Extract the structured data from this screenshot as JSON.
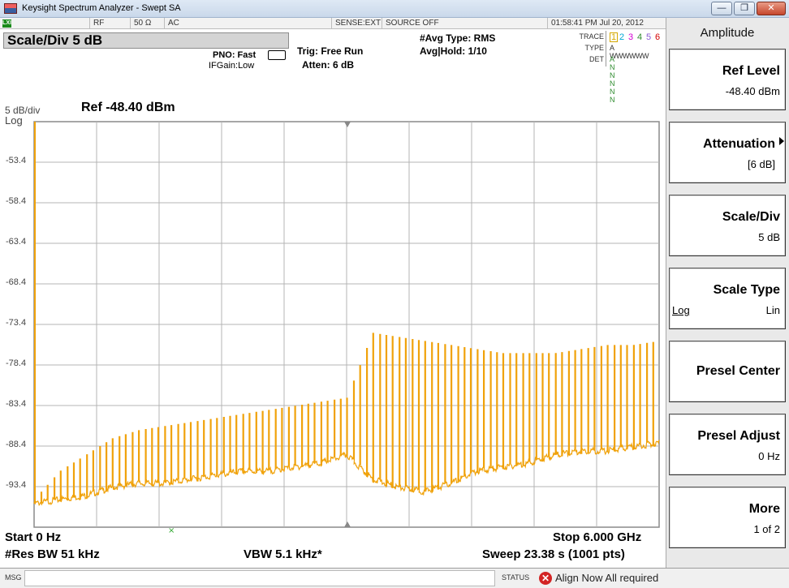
{
  "window": {
    "title": "Keysight Spectrum Analyzer - Swept SA",
    "buttons": [
      "—",
      "❐",
      "✕"
    ]
  },
  "info_strip": {
    "lxi": "LXI",
    "rf": "RF",
    "impedance": "50 Ω",
    "coupling": "AC",
    "sense": "SENSE:EXT",
    "source": "SOURCE OFF",
    "datetime": "01:58:41 PM Jul 20, 2012"
  },
  "active_function": "Scale/Div 5 dB",
  "settings": {
    "pno": "PNO: Fast",
    "ifgain": "IFGain:Low",
    "trig": "Trig: Free Run",
    "atten": "Atten: 6 dB",
    "avg_type": "#Avg Type: RMS",
    "avg_hold": "Avg|Hold: 1/10"
  },
  "trace_table": {
    "trace_label": "TRACE",
    "type_label": "TYPE",
    "det_label": "DET",
    "traces": [
      "1",
      "2",
      "3",
      "4",
      "5",
      "6"
    ],
    "trace_colors": [
      "#d4a800",
      "#00a9d4",
      "#d400d4",
      "#2e8b2e",
      "#8a5cd4",
      "#d40000"
    ],
    "type_row": "A WWWWWW",
    "det_row": "A N N N N N"
  },
  "plot": {
    "scale_label": "5 dB/div",
    "scale_mode": "Log",
    "ref_label": "Ref -48.40 dBm",
    "yticks": [
      "-53.4",
      "-58.4",
      "-63.4",
      "-68.4",
      "-73.4",
      "-78.4",
      "-83.4",
      "-88.4",
      "-93.4"
    ],
    "trace_color": "#f0a20a",
    "grid_color": "#b4b4b4"
  },
  "chart_data": {
    "type": "line",
    "xlabel": "",
    "ylabel": "",
    "x_start_ghz": 0,
    "x_stop_ghz": 6.0,
    "ylim": [
      -98.4,
      -48.4
    ],
    "y_units": "dBm",
    "grid": true,
    "series": [
      {
        "x_ghz": [
          0,
          0.25,
          0.5,
          0.75,
          1.0,
          1.25,
          1.5,
          1.75,
          2.0,
          2.25,
          2.5,
          2.75,
          3.0,
          3.25,
          3.5,
          3.75,
          4.0,
          4.25,
          4.5,
          4.75,
          5.0,
          5.25,
          5.5,
          5.75,
          6.0
        ],
        "floor_dbm": [
          -95.5,
          -95.0,
          -94.5,
          -93.5,
          -93.0,
          -93.0,
          -92.5,
          -92.0,
          -91.5,
          -91.5,
          -91.0,
          -90.5,
          -89.5,
          -92.5,
          -93.5,
          -94.0,
          -93.0,
          -91.5,
          -91.0,
          -90.5,
          -89.5,
          -89.0,
          -89.0,
          -88.5,
          -88.0
        ],
        "spur_peak_dbm": [
          -95.0,
          -91.5,
          -89.5,
          -87.5,
          -86.5,
          -86.0,
          -85.5,
          -85.0,
          -84.5,
          -84.0,
          -83.5,
          -83.0,
          -82.5,
          -74.5,
          -75.0,
          -75.5,
          -76.0,
          -76.5,
          -77.0,
          -77.0,
          -77.0,
          -76.5,
          -76.0,
          -76.0,
          -75.5
        ]
      }
    ]
  },
  "footer": {
    "start": "Start 0 Hz",
    "stop": "Stop 6.000 GHz",
    "rbw": "#Res BW 51 kHz",
    "vbw": "VBW 5.1 kHz*",
    "sweep": "Sweep  23.38 s (1001 pts)"
  },
  "status_bar": {
    "msg_label": "MSG",
    "status_label": "STATUS",
    "message": "Align Now All required"
  },
  "softkeys": {
    "menu_title": "Amplitude",
    "keys": [
      {
        "label": "Ref Level",
        "value": "-48.40 dBm"
      },
      {
        "label": "Attenuation",
        "value": "[6 dB]"
      },
      {
        "label": "Scale/Div",
        "value": "5 dB"
      },
      {
        "label": "Scale Type",
        "left": "Log",
        "value": "Lin"
      },
      {
        "label": "Presel Center",
        "value": ""
      },
      {
        "label": "Presel Adjust",
        "value": "0 Hz"
      },
      {
        "label": "More",
        "value": "1 of 2"
      }
    ]
  }
}
